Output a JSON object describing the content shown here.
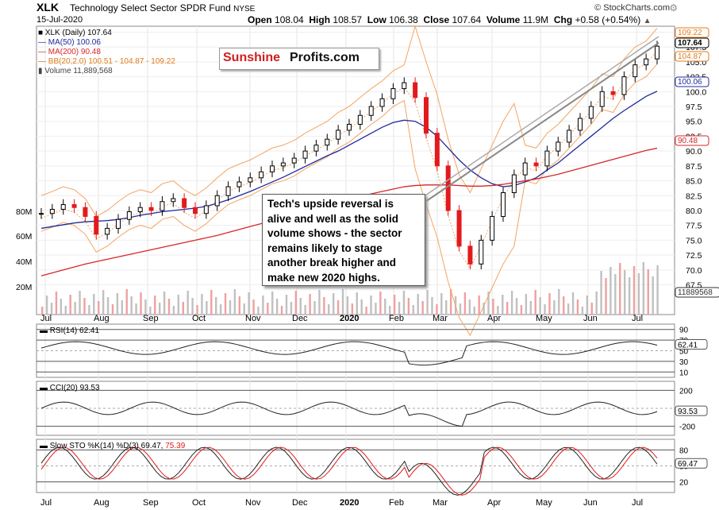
{
  "header": {
    "symbol": "XLK",
    "name": "Technology Select Sector SPDR Fund",
    "exchange": "NYSE",
    "date": "15-Jul-2020",
    "source": "© StockCharts.com",
    "open_label": "Open",
    "open": "108.04",
    "high_label": "High",
    "high": "108.57",
    "low_label": "Low",
    "low": "106.38",
    "close_label": "Close",
    "close": "107.64",
    "volume_label": "Volume",
    "volume": "11.9M",
    "chg_label": "Chg",
    "chg": "+0.58 (+0.54%)"
  },
  "legend": {
    "price": "XLK (Daily) 107.64",
    "ma50": "MA(50) 100.06",
    "ma200": "MA(200) 90.48",
    "bb": "BB(20,2.0) 100.51 - 104.87 - 109.22",
    "volume": "Volume 11,889,568"
  },
  "logo": {
    "part1": "Sunshine",
    "part2": "Profits.com"
  },
  "annotation": "Tech's upside reversal is alive and well as the solid volume shows - the sector remains likely to stage another break higher and make new 2020 highs.",
  "colors": {
    "up": "#000000",
    "down": "#e31a1c",
    "ma50": "#1f2a9b",
    "ma200": "#d62728",
    "bb": "#f4a460",
    "volume": "#c0c0c0",
    "volume_down": "#f0a0a0",
    "rsi_fill": "#3b7a3b",
    "cci_down_fill": "#8b3a3a",
    "stoch_d": "#e31a1c"
  },
  "chart_data": [
    {
      "type": "candlestick",
      "title": "XLK Technology Select Sector SPDR Fund NYSE",
      "x_ticks": [
        "Jul",
        "Aug",
        "Sep",
        "Oct",
        "Nov",
        "Dec",
        "2020",
        "Feb",
        "Mar",
        "Apr",
        "May",
        "Jun",
        "Jul"
      ],
      "y_ticks": [
        "110.0",
        "107.5",
        "105.0",
        "102.5",
        "100.0",
        "97.5",
        "95.0",
        "92.5",
        "90.0",
        "87.5",
        "85.0",
        "82.5",
        "80.0",
        "77.5",
        "75.0",
        "72.5",
        "70.0",
        "67.5"
      ],
      "ylim": [
        66.5,
        111
      ],
      "volume_ticks": [
        "80M",
        "60M",
        "40M",
        "20M"
      ],
      "price_tags": [
        "109.22",
        "107.64",
        "104.87",
        "100.06",
        "90.48",
        "11889568"
      ],
      "series": [
        {
          "name": "XLK (Daily)",
          "close": [
            79.5,
            80.2,
            81.0,
            80.5,
            79.0,
            76.0,
            77.0,
            78.5,
            79.8,
            80.5,
            80.0,
            81.5,
            82.0,
            80.5,
            79.5,
            80.8,
            82.5,
            84.0,
            84.8,
            85.5,
            86.5,
            87.5,
            88.0,
            88.8,
            90.0,
            91.0,
            92.0,
            93.5,
            94.5,
            96.0,
            97.5,
            98.8,
            100.5,
            101.5,
            99.0,
            93.0,
            87.5,
            80.0,
            74.0,
            71.0,
            75.0,
            79.0,
            83.0,
            86.0,
            88.0,
            87.5,
            90.0,
            91.5,
            93.5,
            95.5,
            97.5,
            100.0,
            99.5,
            102.5,
            104.5,
            105.5,
            107.64
          ]
        },
        {
          "name": "MA(50)",
          "values": [
            77.0,
            77.3,
            77.6,
            77.9,
            78.1,
            78.2,
            78.3,
            78.5,
            78.8,
            79.2,
            79.5,
            79.8,
            80.0,
            80.2,
            80.4,
            80.7,
            81.2,
            81.8,
            82.5,
            83.2,
            84.0,
            84.8,
            85.6,
            86.5,
            87.4,
            88.3,
            89.2,
            90.0,
            91.0,
            92.0,
            93.0,
            94.0,
            94.8,
            95.2,
            95.0,
            94.0,
            92.5,
            90.5,
            88.5,
            86.8,
            85.5,
            84.5,
            84.0,
            84.2,
            84.8,
            85.5,
            86.8,
            88.0,
            89.5,
            91.0,
            92.5,
            94.0,
            95.5,
            96.8,
            98.0,
            99.2,
            100.06
          ]
        },
        {
          "name": "MA(200)",
          "values": [
            69.0,
            69.5,
            70.0,
            70.5,
            71.0,
            71.4,
            71.8,
            72.2,
            72.6,
            73.0,
            73.4,
            73.8,
            74.2,
            74.6,
            75.0,
            75.4,
            75.8,
            76.3,
            76.8,
            77.3,
            77.8,
            78.3,
            78.8,
            79.3,
            79.8,
            80.3,
            80.8,
            81.3,
            81.8,
            82.3,
            82.8,
            83.2,
            83.6,
            84.0,
            84.2,
            84.3,
            84.3,
            84.3,
            84.2,
            84.1,
            84.1,
            84.2,
            84.4,
            84.7,
            85.0,
            85.3,
            85.7,
            86.1,
            86.6,
            87.1,
            87.6,
            88.1,
            88.6,
            89.1,
            89.6,
            90.1,
            90.48
          ]
        }
      ]
    },
    {
      "type": "line",
      "name": "RSI(14)",
      "value": "62.41",
      "y_ticks": [
        "90",
        "70",
        "50",
        "30",
        "10"
      ],
      "ylim": [
        0,
        100
      ]
    },
    {
      "type": "line",
      "name": "CCI(20)",
      "value": "93.53",
      "y_ticks": [
        "200",
        "0",
        "-200"
      ],
      "ylim": [
        -300,
        300
      ]
    },
    {
      "type": "line",
      "name": "Slow STO %K(14) %D(3)",
      "value": "69.47",
      "value2": "75.39",
      "y_ticks": [
        "80",
        "50",
        "20"
      ],
      "ylim": [
        0,
        100
      ]
    }
  ]
}
